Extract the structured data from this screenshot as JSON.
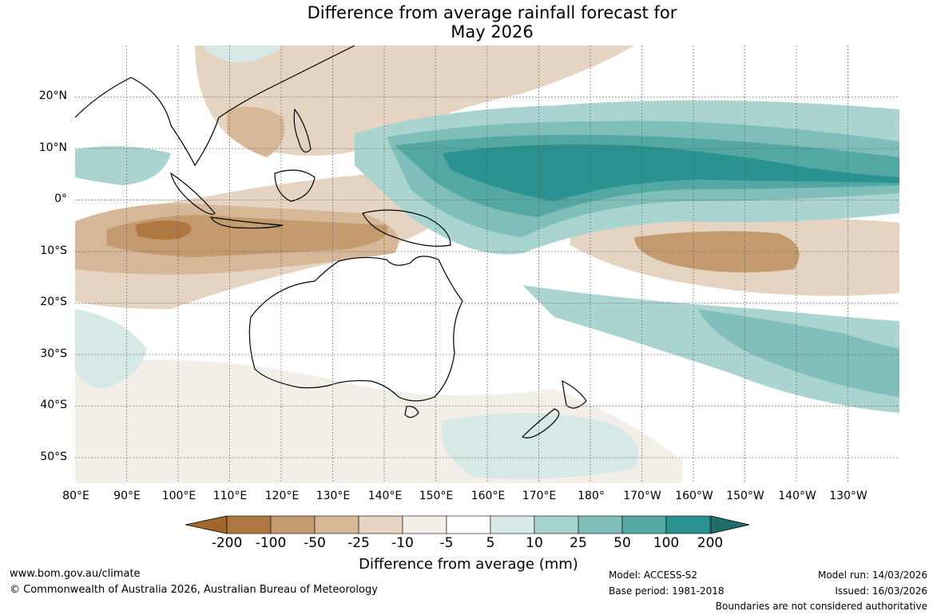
{
  "title": {
    "line1": "Difference from average rainfall forecast for",
    "line2": "May 2026"
  },
  "map": {
    "longitude_labels": [
      "80°E",
      "90°E",
      "100°E",
      "110°E",
      "120°E",
      "130°E",
      "140°E",
      "150°E",
      "160°E",
      "170°E",
      "180°",
      "170°W",
      "160°W",
      "150°W",
      "140°W",
      "130°W"
    ],
    "latitude_labels": [
      "20°N",
      "10°N",
      "0°",
      "10°S",
      "20°S",
      "30°S",
      "40°S",
      "50°S"
    ],
    "extent": {
      "lon_min": 80,
      "lon_max": 240,
      "lat_min": -55,
      "lat_max": 30
    }
  },
  "legend": {
    "ticks": [
      "-200",
      "-100",
      "-50",
      "-25",
      "-10",
      "-5",
      "5",
      "10",
      "25",
      "50",
      "100",
      "200"
    ],
    "colors": [
      "#a0682f",
      "#b07841",
      "#c49a6f",
      "#d6b898",
      "#e5d4c2",
      "#f3eee8",
      "#ffffff",
      "#d6e9e7",
      "#aad4d0",
      "#7fbeb9",
      "#53a8a4",
      "#2a9290",
      "#1f6e6b"
    ],
    "label": "Difference from average (mm)"
  },
  "footer": {
    "website": "www.bom.gov.au/climate",
    "copyright": "© Commonwealth of Australia 2026, Australian Bureau of Meteorology",
    "model": "Model: ACCESS-S2",
    "base_period": "Base period: 1981-2018",
    "model_run": "Model run: 14/03/2026",
    "issued": "Issued: 16/03/2026",
    "disclaimer": "Boundaries are not considered authoritative"
  }
}
